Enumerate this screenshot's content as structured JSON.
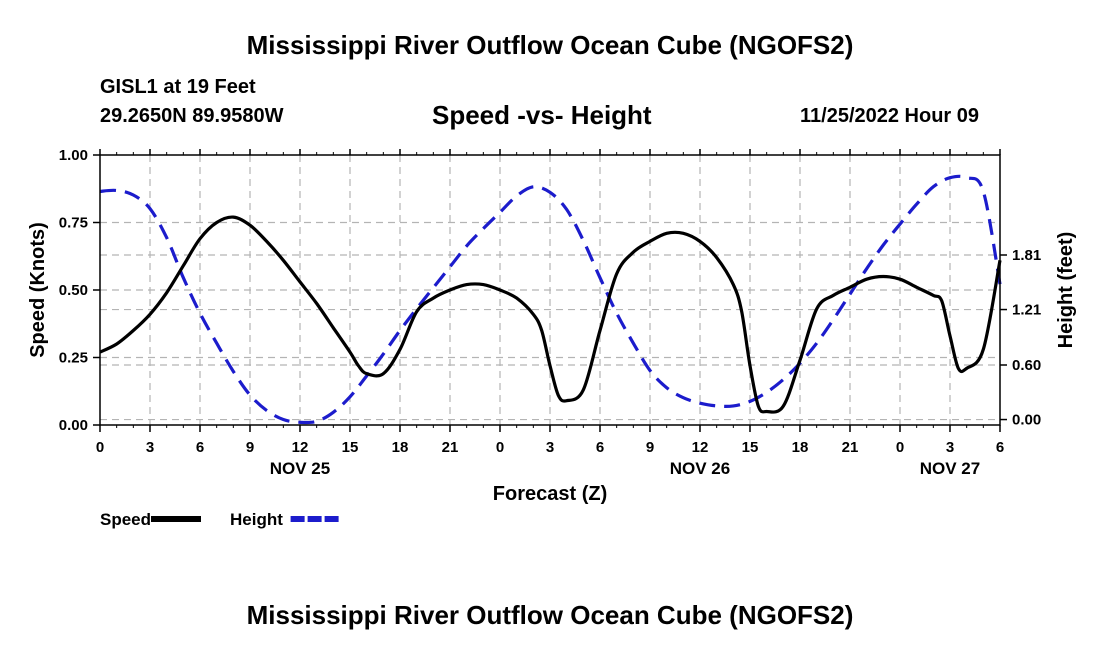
{
  "page": {
    "title": "Mississippi River Outflow Ocean Cube (NGOFS2)",
    "footer_title": "Mississippi River Outflow Ocean Cube (NGOFS2)",
    "station": "GISL1 at 19 Feet",
    "coordinates": "29.2650N  89.9580W",
    "subtitle": "Speed -vs- Height",
    "datetime": "11/25/2022 Hour 09"
  },
  "chart_data": {
    "type": "line",
    "title": "Speed -vs- Height",
    "xlabel": "Forecast (Z)",
    "ylabel": "Speed (Knots)",
    "y2label": "Height (feet)",
    "x_unit": "hours from Nov 25 00Z",
    "xlim": [
      0,
      54
    ],
    "ylim": [
      0,
      1.0
    ],
    "y2lim": [
      -0.06,
      2.91
    ],
    "grid": true,
    "x_ticks": [
      0,
      3,
      6,
      9,
      12,
      15,
      18,
      21,
      24,
      27,
      30,
      33,
      36,
      39,
      42,
      45,
      48,
      51,
      54
    ],
    "x_tick_labels": [
      "0",
      "3",
      "6",
      "9",
      "12",
      "15",
      "18",
      "21",
      "0",
      "3",
      "6",
      "9",
      "12",
      "15",
      "18",
      "21",
      "0",
      "3",
      "6"
    ],
    "y_ticks": [
      0,
      0.25,
      0.5,
      0.75,
      1.0
    ],
    "y_tick_labels": [
      "0.00",
      "0.25",
      "0.50",
      "0.75",
      "1.00"
    ],
    "y2_ticks": [
      0.0,
      0.6,
      1.21,
      1.81
    ],
    "y2_tick_labels": [
      "0.00",
      "0.60",
      "1.21",
      "1.81"
    ],
    "day_labels": [
      {
        "x": 12,
        "label": "NOV 25"
      },
      {
        "x": 36,
        "label": "NOV 26"
      },
      {
        "x": 51,
        "label": "NOV 27"
      }
    ],
    "legend": [
      {
        "name": "Speed",
        "color": "#000000",
        "dash": "solid"
      },
      {
        "name": "Height",
        "color": "#1c1ccc",
        "dash": "dashed"
      }
    ],
    "series": [
      {
        "name": "Speed",
        "axis": "left",
        "color": "#000000",
        "dash": "solid",
        "x": [
          0,
          1,
          2,
          3,
          4,
          5,
          6,
          7,
          8,
          9,
          10,
          11,
          12,
          13,
          14,
          15,
          15.5,
          16,
          17,
          18,
          19,
          20,
          21,
          22,
          23,
          24,
          25,
          26,
          26.5,
          27,
          27.5,
          28,
          29,
          30,
          31,
          32,
          33,
          34,
          35,
          36,
          37,
          38,
          38.5,
          39,
          39.5,
          40,
          41,
          42,
          43,
          44,
          45,
          46,
          47,
          48,
          49,
          50,
          50.5,
          51,
          51.5,
          52,
          53,
          54
        ],
        "y": [
          0.27,
          0.3,
          0.35,
          0.41,
          0.49,
          0.59,
          0.69,
          0.75,
          0.77,
          0.74,
          0.68,
          0.61,
          0.53,
          0.45,
          0.36,
          0.27,
          0.22,
          0.19,
          0.19,
          0.28,
          0.42,
          0.47,
          0.5,
          0.52,
          0.52,
          0.5,
          0.47,
          0.41,
          0.35,
          0.22,
          0.11,
          0.09,
          0.13,
          0.35,
          0.56,
          0.64,
          0.68,
          0.71,
          0.71,
          0.68,
          0.62,
          0.52,
          0.42,
          0.22,
          0.07,
          0.05,
          0.07,
          0.24,
          0.43,
          0.48,
          0.51,
          0.54,
          0.55,
          0.54,
          0.51,
          0.48,
          0.46,
          0.33,
          0.21,
          0.21,
          0.28,
          0.61
        ]
      },
      {
        "name": "Height",
        "axis": "right",
        "color": "#1c1ccc",
        "dash": "dashed",
        "x": [
          0,
          1,
          2,
          3,
          4,
          5,
          6,
          7,
          8,
          9,
          10,
          11,
          12,
          13,
          14,
          15,
          16,
          17,
          18,
          19,
          20,
          21,
          22,
          23,
          24,
          25,
          26,
          27,
          28,
          29,
          30,
          31,
          32,
          33,
          34,
          35,
          36,
          37,
          38,
          39,
          40,
          41,
          42,
          43,
          44,
          45,
          46,
          47,
          48,
          49,
          50,
          51,
          52,
          53,
          54
        ],
        "y": [
          2.51,
          2.52,
          2.47,
          2.32,
          2.0,
          1.56,
          1.17,
          0.84,
          0.53,
          0.27,
          0.1,
          0.0,
          -0.03,
          -0.02,
          0.08,
          0.25,
          0.48,
          0.72,
          0.98,
          1.22,
          1.45,
          1.68,
          1.91,
          2.1,
          2.28,
          2.46,
          2.56,
          2.5,
          2.31,
          1.97,
          1.56,
          1.17,
          0.84,
          0.54,
          0.35,
          0.24,
          0.18,
          0.15,
          0.15,
          0.2,
          0.3,
          0.44,
          0.62,
          0.84,
          1.1,
          1.38,
          1.66,
          1.92,
          2.15,
          2.37,
          2.56,
          2.66,
          2.66,
          2.51,
          1.49
        ]
      }
    ]
  }
}
